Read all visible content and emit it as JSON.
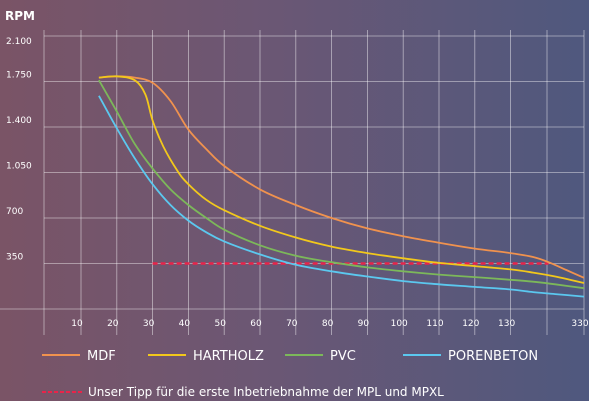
{
  "chart_data": {
    "type": "line",
    "ylabel": "RPM",
    "xlabel": "",
    "ylim": [
      0,
      2100
    ],
    "xlim": [
      0,
      330
    ],
    "y_ticks": [
      350,
      700,
      1050,
      1400,
      1750,
      2100
    ],
    "y_tick_labels": [
      "350",
      "700",
      "1.050",
      "1.400",
      "1.750",
      "2.100"
    ],
    "x_ticks": [
      10,
      20,
      30,
      40,
      50,
      60,
      70,
      80,
      90,
      100,
      110,
      120,
      130,
      330
    ],
    "x_tick_labels": [
      "10",
      "20",
      "30",
      "40",
      "50",
      "60",
      "70",
      "80",
      "90",
      "100",
      "110",
      "120",
      "130",
      "330"
    ],
    "grid": true,
    "legend_position": "bottom",
    "series": [
      {
        "name": "MDF",
        "color": "#f0924e",
        "points": [
          [
            15,
            1780
          ],
          [
            20,
            1790
          ],
          [
            25,
            1780
          ],
          [
            30,
            1740
          ],
          [
            35,
            1600
          ],
          [
            40,
            1380
          ],
          [
            45,
            1230
          ],
          [
            50,
            1100
          ],
          [
            60,
            920
          ],
          [
            70,
            800
          ],
          [
            80,
            700
          ],
          [
            90,
            620
          ],
          [
            100,
            560
          ],
          [
            110,
            510
          ],
          [
            120,
            465
          ],
          [
            130,
            430
          ],
          [
            140,
            400
          ],
          [
            147,
            360
          ],
          [
            155,
            300
          ],
          [
            163,
            240
          ]
        ]
      },
      {
        "name": "HARTHOLZ",
        "color": "#f2c81b",
        "points": [
          [
            15,
            1780
          ],
          [
            20,
            1790
          ],
          [
            25,
            1760
          ],
          [
            28,
            1650
          ],
          [
            30,
            1450
          ],
          [
            33,
            1250
          ],
          [
            37,
            1060
          ],
          [
            40,
            960
          ],
          [
            45,
            840
          ],
          [
            50,
            760
          ],
          [
            60,
            640
          ],
          [
            70,
            550
          ],
          [
            80,
            480
          ],
          [
            90,
            430
          ],
          [
            100,
            390
          ],
          [
            110,
            355
          ],
          [
            120,
            330
          ],
          [
            130,
            305
          ],
          [
            140,
            280
          ],
          [
            150,
            250
          ],
          [
            163,
            200
          ]
        ]
      },
      {
        "name": "PVC",
        "color": "#7cb85a",
        "points": [
          [
            15,
            1760
          ],
          [
            20,
            1520
          ],
          [
            25,
            1270
          ],
          [
            30,
            1080
          ],
          [
            35,
            920
          ],
          [
            40,
            800
          ],
          [
            45,
            700
          ],
          [
            50,
            610
          ],
          [
            60,
            490
          ],
          [
            70,
            410
          ],
          [
            80,
            360
          ],
          [
            90,
            320
          ],
          [
            100,
            290
          ],
          [
            110,
            265
          ],
          [
            120,
            245
          ],
          [
            130,
            225
          ],
          [
            140,
            210
          ],
          [
            150,
            190
          ],
          [
            163,
            160
          ]
        ]
      },
      {
        "name": "PORENBETON",
        "color": "#5bc8ef",
        "points": [
          [
            15,
            1640
          ],
          [
            20,
            1390
          ],
          [
            25,
            1160
          ],
          [
            30,
            960
          ],
          [
            35,
            800
          ],
          [
            40,
            680
          ],
          [
            45,
            590
          ],
          [
            50,
            520
          ],
          [
            60,
            420
          ],
          [
            70,
            340
          ],
          [
            80,
            290
          ],
          [
            90,
            250
          ],
          [
            100,
            215
          ],
          [
            110,
            190
          ],
          [
            120,
            170
          ],
          [
            130,
            150
          ],
          [
            140,
            130
          ],
          [
            150,
            115
          ],
          [
            163,
            95
          ]
        ]
      }
    ],
    "reference_line": {
      "label": "Unser Tipp für die erste Inbetriebnahme der MPL und MPXL",
      "color": "#e8244a",
      "x": [
        30,
        147
      ],
      "y": 350
    }
  }
}
